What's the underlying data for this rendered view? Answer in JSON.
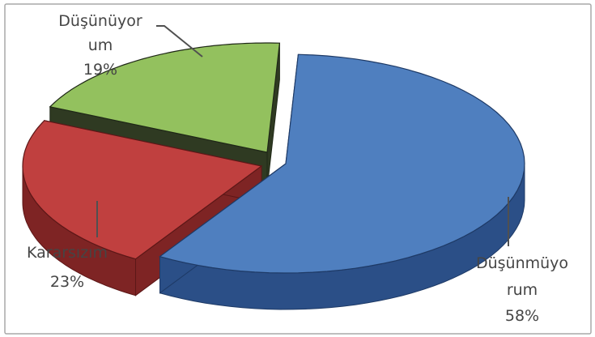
{
  "chart_data": {
    "type": "pie",
    "title": "",
    "style": "3d-exploded",
    "slices": [
      {
        "key": "dusunmuyorum",
        "label_lines": [
          "Düşünmüyo",
          "rum"
        ],
        "value": 58,
        "value_text": "58%",
        "colors": {
          "top": "#4f7fbf",
          "side": "#2b4f87",
          "edge": "#1e3a66"
        }
      },
      {
        "key": "kararsizim",
        "label_lines": [
          "Kararsızım"
        ],
        "value": 23,
        "value_text": "23%",
        "colors": {
          "top": "#c0403f",
          "side": "#7e2424",
          "edge": "#5c1717"
        }
      },
      {
        "key": "dusunuyorum",
        "label_lines": [
          "Düşünüyor",
          "um"
        ],
        "value": 19,
        "value_text": "19%",
        "colors": {
          "top": "#93c15e",
          "side": "#2f3a22",
          "edge": "#1f2817"
        }
      }
    ]
  }
}
